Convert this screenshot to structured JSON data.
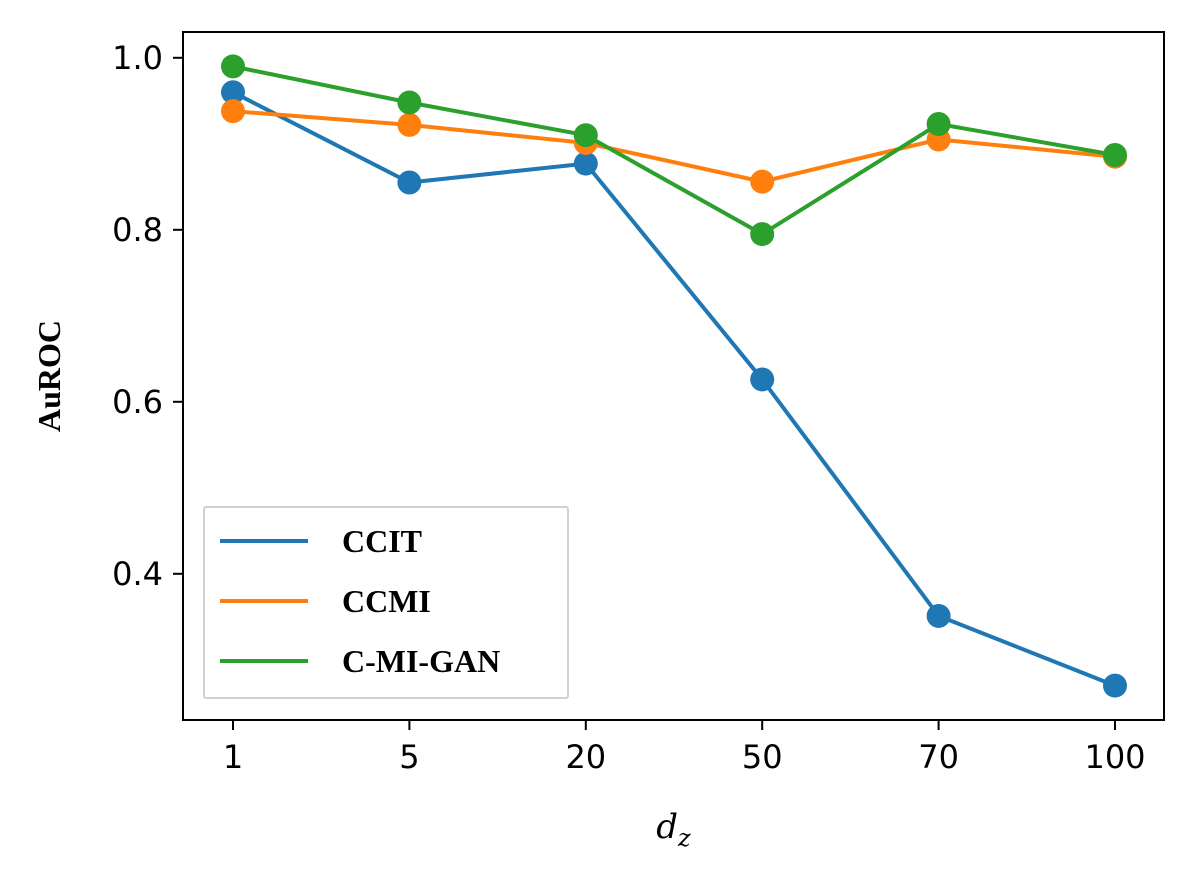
{
  "chart_data": {
    "type": "line",
    "title": "",
    "xlabel_main": "d",
    "xlabel_sub": "z",
    "ylabel": "AuROC",
    "categories": [
      "1",
      "5",
      "20",
      "50",
      "70",
      "100"
    ],
    "ylim": [
      0.23,
      1.03
    ],
    "yticks": [
      0.4,
      0.6,
      0.8,
      1.0
    ],
    "ytick_labels": [
      "0.4",
      "0.6",
      "0.8",
      "1.0"
    ],
    "grid": false,
    "legend_position": "lower-left",
    "series": [
      {
        "name": "CCIT",
        "color": "#1f77b4",
        "values": [
          0.96,
          0.855,
          0.877,
          0.626,
          0.351,
          0.27
        ]
      },
      {
        "name": "CCMI",
        "color": "#ff7f0e",
        "values": [
          0.938,
          0.922,
          0.901,
          0.856,
          0.905,
          0.885
        ]
      },
      {
        "name": "C-MI-GAN",
        "color": "#2ca02c",
        "values": [
          0.99,
          0.948,
          0.91,
          0.795,
          0.923,
          0.887
        ]
      }
    ]
  }
}
